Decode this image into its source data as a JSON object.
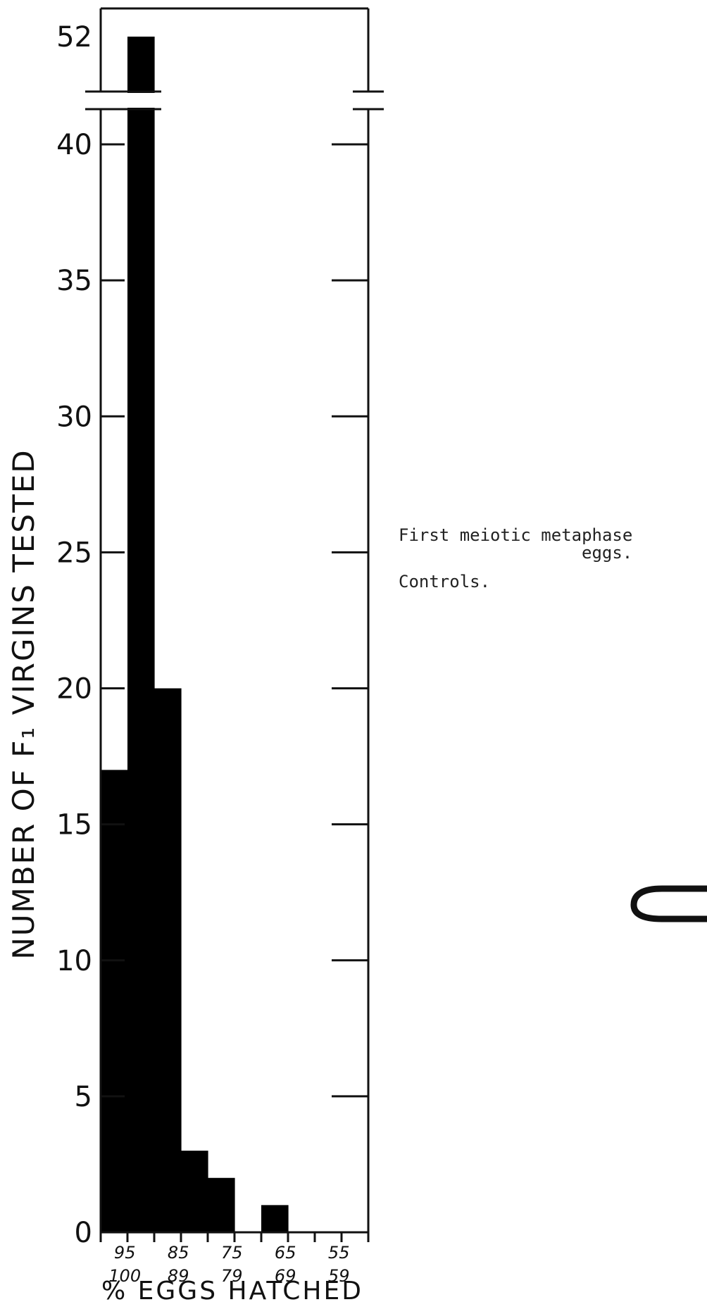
{
  "chart_data": {
    "type": "bar",
    "ylabel": "NUMBER OF F₁ VIRGINS TESTED",
    "xlabel": "% EGGS HATCHED",
    "categories": [
      {
        "top": "95",
        "bottom": "100"
      },
      {
        "top": "",
        "bottom": ""
      },
      {
        "top": "85",
        "bottom": "89"
      },
      {
        "top": "",
        "bottom": ""
      },
      {
        "top": "75",
        "bottom": "79"
      },
      {
        "top": "",
        "bottom": ""
      },
      {
        "top": "65",
        "bottom": "69"
      },
      {
        "top": "",
        "bottom": ""
      },
      {
        "top": "55",
        "bottom": "59"
      },
      {
        "top": "",
        "bottom": ""
      }
    ],
    "values": [
      17,
      52,
      20,
      3,
      2,
      0,
      1,
      0,
      0,
      0
    ],
    "ylim": [
      0,
      52
    ],
    "yticks": [
      0,
      5,
      10,
      15,
      20,
      25,
      30,
      35,
      40,
      52
    ],
    "axis_break": {
      "from": 41,
      "to": 51
    },
    "bar_color": "#000000"
  },
  "annotation": {
    "line1": "First meiotic metaphase",
    "line2": "eggs.",
    "line3": "Controls."
  }
}
